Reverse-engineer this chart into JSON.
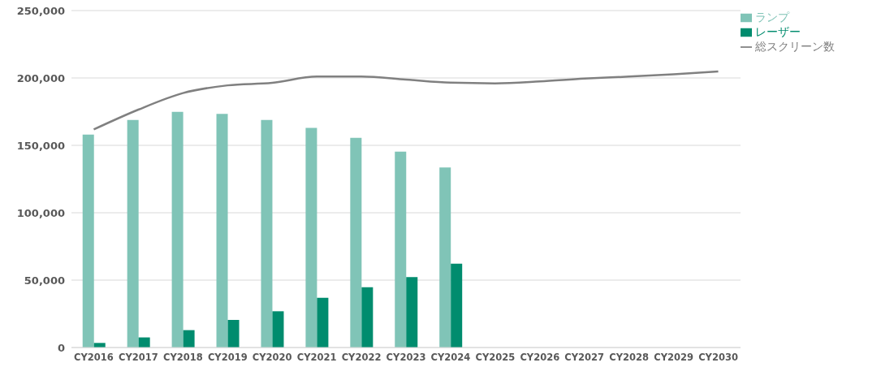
{
  "chart_data": {
    "type": "bar",
    "categories": [
      "CY2016",
      "CY2017",
      "CY2018",
      "CY2019",
      "CY2020",
      "CY2021",
      "CY2022",
      "CY2023",
      "CY2024",
      "CY2025",
      "CY2026",
      "CY2027",
      "CY2028",
      "CY2029",
      "CY2030"
    ],
    "series": [
      {
        "name": "ランプ",
        "color": "#80c4b7",
        "values": [
          158000,
          168900,
          174800,
          173400,
          168900,
          163000,
          155600,
          145400,
          133600,
          null,
          null,
          null,
          null,
          null,
          null
        ]
      },
      {
        "name": "レーザー",
        "color": "#008c6e",
        "values": [
          3400,
          7500,
          12900,
          20500,
          26900,
          36900,
          44700,
          52300,
          62200,
          null,
          null,
          null,
          null,
          null,
          null
        ]
      },
      {
        "name": "総スクリーン数",
        "type": "line",
        "color": "#808080",
        "values": [
          161800,
          176500,
          188800,
          194500,
          196400,
          201000,
          201000,
          198800,
          196500,
          196000,
          197400,
          199500,
          201000,
          202700,
          204800
        ]
      }
    ],
    "ylim": [
      0,
      250000
    ],
    "yticks": [
      {
        "value": 0,
        "label": "0"
      },
      {
        "value": 50000,
        "label": "50,000"
      },
      {
        "value": 100000,
        "label": "100,000"
      },
      {
        "value": 150000,
        "label": "150,000"
      },
      {
        "value": 200000,
        "label": "200,000"
      },
      {
        "value": 250000,
        "label": "250,000"
      }
    ],
    "grid": "y",
    "legend": "top right",
    "marker": "none"
  }
}
